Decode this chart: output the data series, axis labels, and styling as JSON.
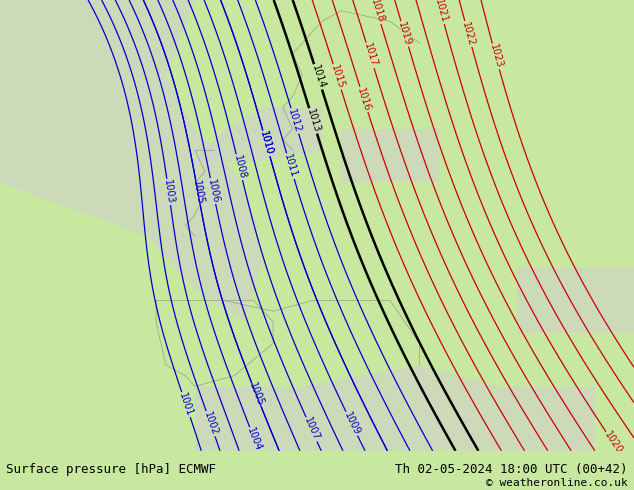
{
  "title_left": "Surface pressure [hPa] ECMWF",
  "title_right": "Th 02-05-2024 18:00 UTC (00+42)",
  "copyright": "© weatheronline.co.uk",
  "bg_color": "#c8e8a0",
  "sea_color": "#d0d0d0",
  "contour_low_color": "#0000cc",
  "contour_high_color": "#cc0000",
  "contour_black_color": "#000000",
  "figsize": [
    6.34,
    4.9
  ],
  "dpi": 100,
  "footer_fontsize": 9,
  "map_extent": [
    -25,
    40,
    30,
    72
  ]
}
